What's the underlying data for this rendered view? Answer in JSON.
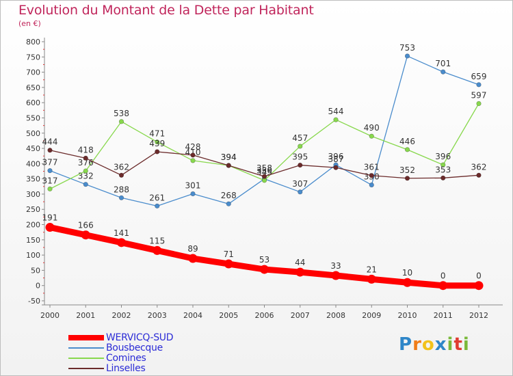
{
  "chart_data": {
    "type": "line",
    "title": "Evolution du Montant de la Dette par Habitant",
    "subtitle": "(en €)",
    "categories": [
      "2000",
      "2001",
      "2002",
      "2003",
      "2004",
      "2005",
      "2006",
      "2007",
      "2008",
      "2009",
      "2010",
      "2011",
      "2012"
    ],
    "ylim": [
      -50,
      800
    ],
    "yticks": [
      -50,
      0,
      50,
      100,
      150,
      200,
      250,
      300,
      350,
      400,
      450,
      500,
      550,
      600,
      650,
      700,
      750,
      800
    ],
    "grid": false,
    "legend_position": "bottom-left",
    "series": [
      {
        "name": "WERVICQ-SUD",
        "color": "#ff0000",
        "values": [
          191,
          166,
          141,
          115,
          89,
          71,
          53,
          44,
          33,
          21,
          10,
          0,
          0
        ]
      },
      {
        "name": "Bousbecque",
        "color": "#4a8ccc",
        "values": [
          377,
          332,
          288,
          261,
          301,
          268,
          350,
          307,
          396,
          330,
          753,
          701,
          659
        ]
      },
      {
        "name": "Comines",
        "color": "#88d84d",
        "values": [
          317,
          376,
          538,
          471,
          410,
          394,
          345,
          457,
          544,
          490,
          446,
          396,
          597
        ]
      },
      {
        "name": "Linselles",
        "color": "#6b2b2b",
        "values": [
          444,
          418,
          362,
          439,
          428,
          394,
          358,
          395,
          387,
          361,
          352,
          353,
          362
        ]
      }
    ]
  },
  "logo": {
    "text": "Proxiti",
    "letters": [
      "P",
      "r",
      "o",
      "x",
      "i",
      "t",
      "i"
    ],
    "colors": [
      "#2e86c8",
      "#f07d1a",
      "#f2c21c",
      "#2e86c8",
      "#7ab93a",
      "#e03c31",
      "#7ab93a"
    ]
  }
}
